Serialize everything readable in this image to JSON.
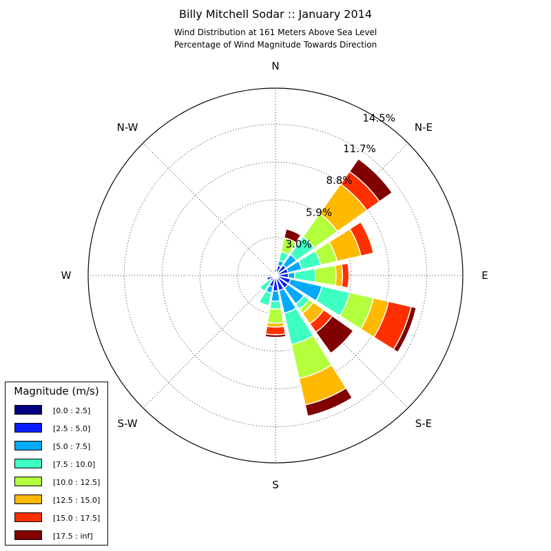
{
  "title": "Billy Mitchell Sodar :: January 2014",
  "subtitle_line1": "Wind Distribution at 161 Meters Above Sea Level",
  "subtitle_line2": "Percentage of Wind Magnitude Towards Direction",
  "legend": {
    "title": "Magnitude (m/s)",
    "items": [
      {
        "label": "[0.0 : 2.5]",
        "color": "#000080"
      },
      {
        "label": "[2.5 : 5.0]",
        "color": "#0a1ffd"
      },
      {
        "label": "[5.0 : 7.5]",
        "color": "#03a9fa"
      },
      {
        "label": "[7.5 : 10.0]",
        "color": "#3dffc1"
      },
      {
        "label": "[10.0 : 12.5]",
        "color": "#b3ff3d"
      },
      {
        "label": "[12.5 : 15.0]",
        "color": "#ffb900"
      },
      {
        "label": "[15.0 : 17.5]",
        "color": "#ff3000"
      },
      {
        "label": "[17.5 : inf]",
        "color": "#800000"
      }
    ]
  },
  "chart_data": {
    "type": "windrose",
    "direction_labels": [
      "N",
      "N-E",
      "E",
      "S-E",
      "S",
      "S-W",
      "W",
      "N-W"
    ],
    "radial_tick_labels": [
      "3.0%",
      "5.9%",
      "8.8%",
      "11.7%",
      "14.5%"
    ],
    "radial_ticks": [
      2.95,
      5.87,
      8.8,
      11.73,
      14.53
    ],
    "rmax": 14.53,
    "grid": true,
    "legend_position": "lower-left",
    "bins": [
      "[0.0 : 2.5]",
      "[2.5 : 5.0]",
      "[5.0 : 7.5]",
      "[7.5 : 10.0]",
      "[10.0 : 12.5]",
      "[12.5 : 15.0]",
      "[15.0 : 17.5]",
      "[17.5 : inf]"
    ],
    "directions_deg": [
      0,
      22.5,
      45,
      67.5,
      90,
      112.5,
      135,
      157.5,
      180,
      202.5,
      225,
      247.5,
      270,
      292.5,
      315,
      337.5
    ],
    "cumulative_percent": [
      [
        0.08,
        0.5,
        0.5,
        0.5,
        0.5,
        0.5,
        0.5,
        0.5
      ],
      [
        0.08,
        0.8,
        1.2,
        1.9,
        3.0,
        3.0,
        3.0,
        3.7
      ],
      [
        0.08,
        1.0,
        2.0,
        3.7,
        5.9,
        8.7,
        9.9,
        11.1
      ],
      [
        0.08,
        1.0,
        2.1,
        3.6,
        4.9,
        6.8,
        7.8,
        7.8
      ],
      [
        0.08,
        1.0,
        1.5,
        3.1,
        4.7,
        5.2,
        5.7,
        5.7
      ],
      [
        0.08,
        1.2,
        3.7,
        5.9,
        7.8,
        9.0,
        10.8,
        11.2
      ],
      [
        0.08,
        1.2,
        2.7,
        3.2,
        3.6,
        4.6,
        5.4,
        7.4
      ],
      [
        0.08,
        1.2,
        3.0,
        5.5,
        8.2,
        10.3,
        10.3,
        11.2
      ],
      [
        0.08,
        1.2,
        2.0,
        2.6,
        3.7,
        4.0,
        4.6,
        4.8
      ],
      [
        0.08,
        0.9,
        1.4,
        2.4,
        2.4,
        2.4,
        2.4,
        2.4
      ],
      [
        0.08,
        0.5,
        0.5,
        1.5,
        1.5,
        1.5,
        1.5,
        1.5
      ],
      [
        0.08,
        0.7,
        0.7,
        0.7,
        0.7,
        0.7,
        0.7,
        0.7
      ],
      [
        0.08,
        0.3,
        0.3,
        0.3,
        0.3,
        0.3,
        0.3,
        0.3
      ],
      [
        0.08,
        0.2,
        0.2,
        0.2,
        0.2,
        0.2,
        0.2,
        0.2
      ],
      [
        0.08,
        0.2,
        0.2,
        0.2,
        0.2,
        0.2,
        0.2,
        0.2
      ],
      [
        0.08,
        0.4,
        0.4,
        0.4,
        0.4,
        0.4,
        0.4,
        0.4
      ]
    ]
  }
}
